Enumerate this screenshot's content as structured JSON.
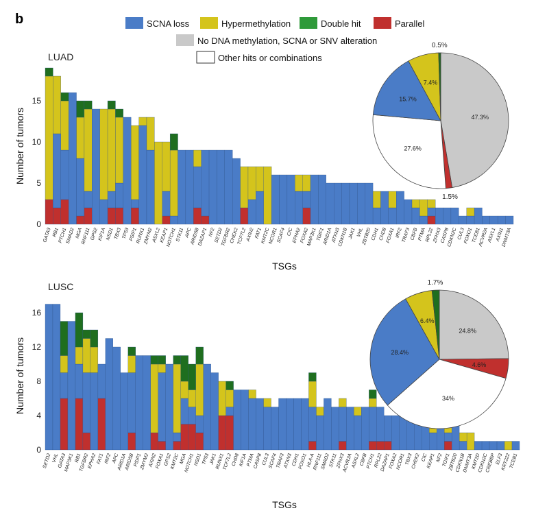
{
  "colors": {
    "loss": "#4a7cc7",
    "hyper": "#d4c41c",
    "double": "#1f6e1f",
    "double_legend": "#2f9a3a",
    "parallel": "#c0302e",
    "none": "#c9c9c9",
    "other": "#ffffff"
  },
  "panel_letter": "b",
  "legend": {
    "loss": "SCNA  loss",
    "hyper": "Hypermethylation",
    "double": "Double hit",
    "parallel": "Parallel",
    "none": "No DNA methylation, SCNA or SNV alteration",
    "other": "Other hits or combinations"
  },
  "chart_data": [
    {
      "type": "bar",
      "stacked": true,
      "panel": "LUAD",
      "title": "LUAD",
      "xlabel": "TSGs",
      "ylabel": "Number of tumors",
      "ylim": [
        0,
        18.5
      ],
      "yticks": [
        0,
        5,
        10,
        15
      ],
      "series_order": [
        "parallel",
        "loss",
        "hyper",
        "double"
      ],
      "categories": [
        "GATA3",
        "RB1",
        "PTCH1",
        "SMAD2",
        "MGA",
        "RNF111",
        "GPS2",
        "KIF1A",
        "NSD1",
        "TBX3",
        "TP53",
        "PSIP1",
        "RUNX1",
        "ZMYM2",
        "ASXL2",
        "KEAP1",
        "NOTCH1",
        "STK11",
        "APC",
        "ARID5B",
        "DAZAP1",
        "NF2",
        "SETD2",
        "TGFBR2",
        "CHEK2",
        "TCF7L2",
        "AXIN2",
        "FAT1",
        "KMT2C",
        "NCOR1",
        "SCAF4",
        "CIC",
        "EPHA2",
        "FOXA2",
        "MAP3K1",
        "TGIF1",
        "ARID1A",
        "ATXN3",
        "CDKN1B",
        "JAK1",
        "VHL",
        "ZBTB20",
        "CDH1",
        "CHD8",
        "FOXA1",
        "IRF2",
        "TRAF3",
        "CBFB",
        "PTMA",
        "RPL22",
        "ZFHX3",
        "CASP8",
        "CDKN2C",
        "CUL3",
        "FOXO1",
        "TCEB1",
        "ACVR2A",
        "ASXL1",
        "AXIN1",
        "DNMT3A"
      ],
      "series": [
        {
          "name": "parallel",
          "values": [
            3,
            2,
            3,
            0,
            1,
            2,
            0,
            0,
            2,
            2,
            0,
            2,
            0,
            0,
            0,
            1,
            0,
            0,
            0,
            2,
            1,
            0,
            0,
            0,
            0,
            2,
            0,
            0,
            0,
            0,
            0,
            0,
            0,
            2,
            0,
            0,
            0,
            0,
            0,
            0,
            0,
            0,
            0,
            0,
            0,
            0,
            0,
            0,
            0,
            1,
            0,
            0,
            0,
            0,
            0,
            0,
            0,
            0,
            0,
            0
          ]
        },
        {
          "name": "loss",
          "values": [
            0,
            9,
            6,
            16,
            7,
            2,
            14,
            3,
            2,
            3,
            13,
            1,
            12,
            9,
            0,
            3,
            1,
            9,
            9,
            5,
            8,
            9,
            9,
            9,
            8,
            0,
            3,
            4,
            0,
            6,
            6,
            6,
            4,
            2,
            6,
            6,
            5,
            5,
            5,
            5,
            5,
            5,
            2,
            4,
            2,
            4,
            3,
            2,
            1,
            1,
            2,
            2,
            2,
            1,
            1,
            2,
            1,
            1,
            1,
            1
          ]
        },
        {
          "name": "hyper",
          "values": [
            15,
            7,
            6,
            0,
            5,
            10,
            0,
            11,
            10,
            8,
            0,
            9,
            1,
            4,
            10,
            6,
            8,
            0,
            0,
            2,
            0,
            0,
            0,
            0,
            0,
            5,
            4,
            3,
            7,
            0,
            0,
            0,
            2,
            2,
            0,
            0,
            0,
            0,
            0,
            0,
            0,
            0,
            2,
            0,
            2,
            0,
            0,
            1,
            2,
            1,
            0,
            0,
            0,
            0,
            1,
            0,
            0,
            0,
            0,
            0
          ]
        },
        {
          "name": "double",
          "values": [
            1,
            0,
            1,
            0,
            2,
            1,
            0,
            0,
            1,
            1,
            0,
            0,
            0,
            0,
            0,
            0,
            2,
            0,
            0,
            0,
            0,
            0,
            0,
            0,
            0,
            0,
            0,
            0,
            0,
            0,
            0,
            0,
            0,
            0,
            0,
            0,
            0,
            0,
            0,
            0,
            0,
            0,
            0,
            0,
            0,
            0,
            0,
            0,
            0,
            0,
            0,
            0,
            0,
            0,
            0,
            0,
            0,
            0,
            0,
            0
          ]
        }
      ]
    },
    {
      "type": "pie",
      "panel": "LUAD",
      "slices": [
        {
          "key": "none",
          "value": 47.3,
          "label": "47.3%"
        },
        {
          "key": "parallel",
          "value": 1.5,
          "label": "1.5%"
        },
        {
          "key": "other",
          "value": 27.6,
          "label": "27.6%"
        },
        {
          "key": "loss",
          "value": 15.7,
          "label": "15.7%"
        },
        {
          "key": "hyper",
          "value": 7.4,
          "label": "7.4%"
        },
        {
          "key": "double",
          "value": 0.5,
          "label": "0.5%"
        }
      ]
    },
    {
      "type": "bar",
      "stacked": true,
      "panel": "LUSC",
      "title": "LUSC",
      "xlabel": "TSGs",
      "ylabel": "Number of tumors",
      "ylim": [
        0,
        18
      ],
      "yticks": [
        0,
        4,
        8,
        12,
        16
      ],
      "series_order": [
        "parallel",
        "loss",
        "hyper",
        "double"
      ],
      "categories": [
        "SETD2",
        "VHL",
        "GATA3",
        "MAP3K1",
        "RB1",
        "TGFBR2",
        "EPHA2",
        "FAT1",
        "IRF2",
        "APC",
        "ARID1A",
        "ARID5B",
        "PSIP1",
        "ZMYM2",
        "AXIN2",
        "FOXA1",
        "GPS2",
        "KMT2C",
        "MGA",
        "NOTCH1",
        "NSD1",
        "TP53",
        "JAK1",
        "RUNX1",
        "TCF7L2",
        "CHD8",
        "KIF1A",
        "PTMA",
        "CASP8",
        "CUL3",
        "SCAF4",
        "TRAF3",
        "ATXN3",
        "CDH1",
        "FOXO1",
        "HLA-A",
        "RNF111",
        "SMAD2",
        "STK11",
        "ZFHX3",
        "ACVR2A",
        "ASXL2",
        "CBFB",
        "PTCH1",
        "RPL22",
        "DAZAP1",
        "FOXA2",
        "NCOR1",
        "TBX3",
        "CHEK2",
        "CIC",
        "KEAP1",
        "NF2",
        "TGIF1",
        "ZBTB20",
        "CDKN1B",
        "DNMT3A",
        "KMT2D",
        "CDKN2C",
        "CREBBP",
        "ELF3",
        "KRT222",
        "TCEB1"
      ],
      "series": [
        {
          "name": "parallel",
          "values": [
            0,
            0,
            6,
            0,
            6,
            2,
            0,
            6,
            0,
            0,
            0,
            2,
            0,
            0,
            2,
            1,
            0,
            1,
            3,
            3,
            2,
            0,
            0,
            4,
            4,
            0,
            0,
            0,
            0,
            0,
            0,
            0,
            0,
            0,
            0,
            1,
            0,
            0,
            0,
            1,
            0,
            0,
            0,
            1,
            1,
            1,
            0,
            0,
            0,
            0,
            0,
            0,
            0,
            1,
            0,
            0,
            0,
            0,
            0,
            0,
            0,
            0,
            0
          ]
        },
        {
          "name": "loss",
          "values": [
            17,
            17,
            3,
            15,
            4,
            7,
            9,
            4,
            13,
            12,
            9,
            7,
            11,
            11,
            0,
            8,
            10,
            1,
            3,
            2,
            2,
            10,
            9,
            0,
            1,
            7,
            7,
            6,
            6,
            5,
            5,
            6,
            6,
            6,
            6,
            4,
            4,
            6,
            5,
            4,
            5,
            4,
            5,
            4,
            4,
            3,
            4,
            4,
            4,
            3,
            3,
            2,
            3,
            1,
            3,
            1,
            0,
            1,
            1,
            1,
            1,
            0,
            1
          ]
        },
        {
          "name": "hyper",
          "values": [
            0,
            0,
            2,
            0,
            2,
            4,
            3,
            0,
            0,
            0,
            0,
            2,
            0,
            0,
            8,
            1,
            0,
            8,
            2,
            2,
            6,
            0,
            0,
            4,
            2,
            0,
            0,
            1,
            0,
            1,
            0,
            0,
            0,
            0,
            0,
            3,
            1,
            0,
            0,
            1,
            0,
            1,
            0,
            1,
            0,
            0,
            0,
            0,
            0,
            0,
            0,
            1,
            0,
            1,
            0,
            1,
            2,
            0,
            0,
            0,
            0,
            1,
            0
          ]
        },
        {
          "name": "double",
          "values": [
            0,
            0,
            4,
            0,
            4,
            1,
            2,
            0,
            0,
            0,
            0,
            1,
            0,
            0,
            1,
            1,
            0,
            1,
            3,
            3,
            2,
            0,
            0,
            0,
            1,
            0,
            0,
            0,
            0,
            0,
            0,
            0,
            0,
            0,
            0,
            1,
            0,
            0,
            0,
            0,
            0,
            0,
            0,
            1,
            0,
            0,
            0,
            0,
            0,
            0,
            0,
            0,
            0,
            0,
            0,
            0,
            0,
            0,
            0,
            0,
            0,
            0,
            0
          ]
        }
      ]
    },
    {
      "type": "pie",
      "panel": "LUSC",
      "slices": [
        {
          "key": "none",
          "value": 24.8,
          "label": "24.8%"
        },
        {
          "key": "parallel",
          "value": 4.6,
          "label": "4.6%"
        },
        {
          "key": "other",
          "value": 34.0,
          "label": "34%"
        },
        {
          "key": "loss",
          "value": 28.4,
          "label": "28.4%"
        },
        {
          "key": "hyper",
          "value": 6.4,
          "label": "6.4%"
        },
        {
          "key": "double",
          "value": 1.7,
          "label": "1.7%"
        }
      ]
    }
  ]
}
